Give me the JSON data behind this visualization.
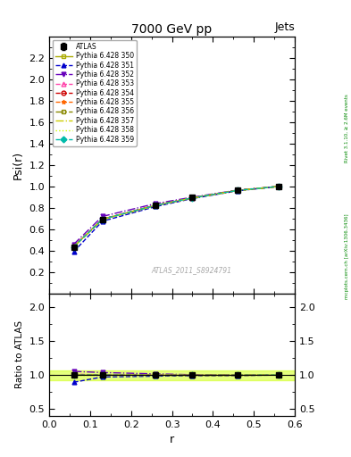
{
  "title": "7000 GeV pp",
  "title_right": "Jets",
  "ylabel_main": "Psi(r)",
  "ylabel_ratio": "Ratio to ATLAS",
  "xlabel": "r",
  "watermark": "ATLAS_2011_S8924791",
  "right_label_top": "Rivet 3.1.10, ≥ 2.6M events",
  "right_label_bottom": "mcplots.cern.ch [arXiv:1306.3436]",
  "x_data": [
    0.06,
    0.13,
    0.26,
    0.35,
    0.46,
    0.56
  ],
  "atlas_y": [
    0.436,
    0.694,
    0.825,
    0.895,
    0.965,
    1.0
  ],
  "atlas_yerr": [
    0.015,
    0.012,
    0.01,
    0.008,
    0.006,
    0.005
  ],
  "series": [
    {
      "label": "Pythia 6.428 350",
      "color": "#aaaa00",
      "linestyle": "-",
      "marker": "s",
      "fillstyle": "none",
      "y": [
        0.436,
        0.695,
        0.823,
        0.893,
        0.963,
        1.0
      ]
    },
    {
      "label": "Pythia 6.428 351",
      "color": "#0000cc",
      "linestyle": "--",
      "marker": "^",
      "fillstyle": "full",
      "y": [
        0.39,
        0.675,
        0.812,
        0.887,
        0.959,
        1.0
      ]
    },
    {
      "label": "Pythia 6.428 352",
      "color": "#6600bb",
      "linestyle": "-.",
      "marker": "v",
      "fillstyle": "full",
      "y": [
        0.46,
        0.72,
        0.84,
        0.9,
        0.966,
        1.0
      ]
    },
    {
      "label": "Pythia 6.428 353",
      "color": "#ff44aa",
      "linestyle": "--",
      "marker": "^",
      "fillstyle": "none",
      "y": [
        0.442,
        0.696,
        0.826,
        0.894,
        0.963,
        1.0
      ]
    },
    {
      "label": "Pythia 6.428 354",
      "color": "#cc0000",
      "linestyle": "--",
      "marker": "o",
      "fillstyle": "none",
      "y": [
        0.438,
        0.694,
        0.824,
        0.893,
        0.963,
        1.0
      ]
    },
    {
      "label": "Pythia 6.428 355",
      "color": "#ff6600",
      "linestyle": "--",
      "marker": "*",
      "fillstyle": "full",
      "y": [
        0.436,
        0.693,
        0.823,
        0.893,
        0.963,
        1.0
      ]
    },
    {
      "label": "Pythia 6.428 356",
      "color": "#888800",
      "linestyle": "-.",
      "marker": "s",
      "fillstyle": "none",
      "y": [
        0.437,
        0.694,
        0.824,
        0.893,
        0.963,
        1.0
      ]
    },
    {
      "label": "Pythia 6.428 357",
      "color": "#cccc00",
      "linestyle": "-.",
      "marker": "None",
      "fillstyle": "none",
      "y": [
        0.435,
        0.692,
        0.822,
        0.892,
        0.962,
        1.0
      ]
    },
    {
      "label": "Pythia 6.428 358",
      "color": "#ccff00",
      "linestyle": ":",
      "marker": "None",
      "fillstyle": "none",
      "y": [
        0.434,
        0.691,
        0.821,
        0.891,
        0.962,
        1.0
      ]
    },
    {
      "label": "Pythia 6.428 359",
      "color": "#00bbaa",
      "linestyle": "--",
      "marker": "D",
      "fillstyle": "full",
      "y": [
        0.436,
        0.694,
        0.823,
        0.893,
        0.963,
        1.0
      ]
    }
  ],
  "xlim": [
    0.0,
    0.6
  ],
  "ylim_main": [
    0.0,
    2.4
  ],
  "ylim_ratio": [
    0.4,
    2.2
  ],
  "yticks_main": [
    0.2,
    0.4,
    0.6,
    0.8,
    1.0,
    1.2,
    1.4,
    1.6,
    1.8,
    2.0,
    2.2
  ],
  "yticks_ratio": [
    0.5,
    1.0,
    1.5,
    2.0
  ],
  "band_color": "#ccff00",
  "band_alpha": 0.5,
  "band_ratio_low": 0.93,
  "band_ratio_high": 1.07
}
